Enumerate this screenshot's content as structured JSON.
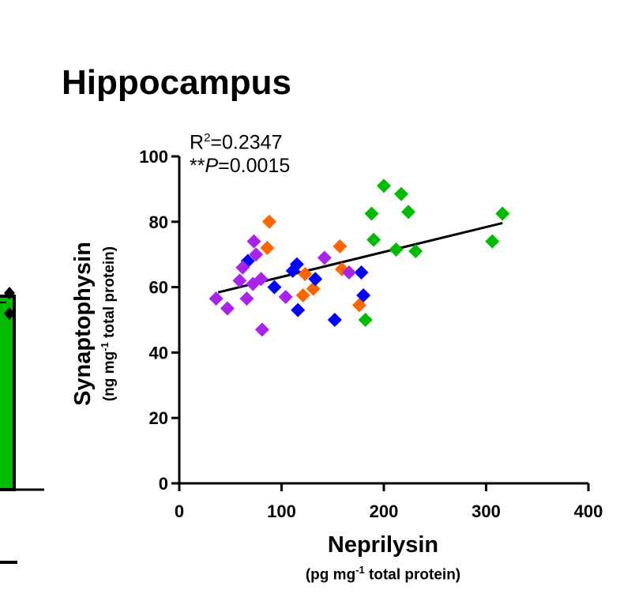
{
  "chart_data": {
    "type": "scatter",
    "title": "Hippocampus",
    "stats": {
      "r2_label": "R",
      "r2_sup": "2",
      "r2_value": "=0.2347",
      "p_stars": "**",
      "p_label": "P",
      "p_value": "=0.0015"
    },
    "xlabel": "Neprilysin",
    "xunit": {
      "pre": "(pg mg",
      "sup": "-1",
      "post": " total protein)"
    },
    "ylabel": "Synaptophysin",
    "yunit": {
      "pre": "(ng mg",
      "sup": "-1",
      "post": " total protein)"
    },
    "xlim": [
      0,
      400
    ],
    "ylim": [
      0,
      100
    ],
    "xticks": [
      "0",
      "100",
      "200",
      "300",
      "400"
    ],
    "yticks": [
      "0",
      "20",
      "40",
      "60",
      "80",
      "100"
    ],
    "marker": "diamond",
    "grid": false,
    "series": [
      {
        "color": "#00bb00",
        "points": [
          [
            200,
            91
          ],
          [
            217,
            88.5
          ],
          [
            224,
            83
          ],
          [
            188,
            82.5
          ],
          [
            316,
            82.5
          ],
          [
            190,
            74.5
          ],
          [
            306,
            74
          ],
          [
            212,
            71.5
          ],
          [
            231,
            71
          ],
          [
            182,
            50
          ]
        ]
      },
      {
        "color": "#ff6600",
        "points": [
          [
            88,
            80
          ],
          [
            86,
            72
          ],
          [
            157,
            72.5
          ],
          [
            159,
            65.5
          ],
          [
            123,
            64
          ],
          [
            131,
            59.5
          ],
          [
            121,
            57.5
          ],
          [
            176,
            54.5
          ]
        ]
      },
      {
        "color": "#0000ff",
        "points": [
          [
            67,
            68
          ],
          [
            115,
            67
          ],
          [
            111,
            65
          ],
          [
            133,
            62.5
          ],
          [
            178,
            64.5
          ],
          [
            93,
            60
          ],
          [
            180,
            57.5
          ],
          [
            116,
            53
          ],
          [
            152,
            50
          ]
        ]
      },
      {
        "color": "#aa22ee",
        "points": [
          [
            73,
            74
          ],
          [
            75,
            70
          ],
          [
            62,
            66
          ],
          [
            59,
            62
          ],
          [
            80,
            62.5
          ],
          [
            72,
            61
          ],
          [
            36,
            56.5
          ],
          [
            66,
            56.5
          ],
          [
            104,
            57
          ],
          [
            47,
            53.5
          ],
          [
            81,
            47
          ],
          [
            142,
            69
          ],
          [
            166,
            64.5
          ]
        ]
      }
    ],
    "regression": {
      "color": "#000000",
      "x": [
        38,
        316
      ],
      "y": [
        58.4,
        79.6
      ]
    }
  },
  "left_panel": {
    "bar_color": "#00bb00",
    "marker_color": "#000000"
  }
}
